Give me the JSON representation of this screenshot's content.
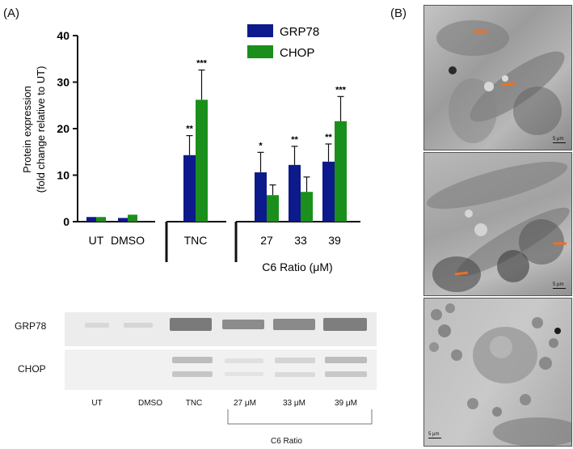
{
  "panel_a_label": "(A)",
  "panel_b_label": "(B)",
  "chart_data": {
    "type": "bar",
    "ylabel_line1": "Protein expression",
    "ylabel_line2": "(fold change relative to UT)",
    "xlabel": "C6 Ratio (μM)",
    "ylim": [
      0,
      40
    ],
    "yticks": [
      0,
      10,
      20,
      30,
      40
    ],
    "categories": [
      "UT",
      "DMSO",
      "TNC",
      "27",
      "33",
      "39"
    ],
    "series": [
      {
        "name": "GRP78",
        "color": "#0d1a8c",
        "values": [
          1.0,
          0.8,
          14.3,
          10.6,
          12.2,
          12.9
        ],
        "errors": [
          0.1,
          0.3,
          4.2,
          4.3,
          4.0,
          3.8
        ],
        "sig": [
          "",
          "",
          "**",
          "*",
          "**",
          "**"
        ]
      },
      {
        "name": "CHOP",
        "color": "#1b8f1b",
        "values": [
          1.0,
          1.5,
          26.2,
          5.7,
          6.4,
          21.6
        ],
        "errors": [
          0.1,
          0.3,
          6.4,
          2.2,
          3.2,
          5.3
        ],
        "sig": [
          "",
          "",
          "***",
          "",
          "",
          "***"
        ]
      }
    ],
    "legend_position": "top-right",
    "grid": false
  },
  "blot": {
    "row_labels": [
      "GRP78",
      "CHOP"
    ],
    "lane_labels": [
      "UT",
      "DMSO",
      "TNC",
      "27 μM",
      "33 μM",
      "39 μM"
    ],
    "group_label": "C6 Ratio"
  },
  "em_images": [
    {
      "name": "em-image-1",
      "scale": "5 μm"
    },
    {
      "name": "em-image-2",
      "scale": "5 μm"
    },
    {
      "name": "em-image-3",
      "scale": "5 μm"
    }
  ],
  "colors": {
    "grp78": "#0d1a8c",
    "chop": "#1b8f1b"
  }
}
